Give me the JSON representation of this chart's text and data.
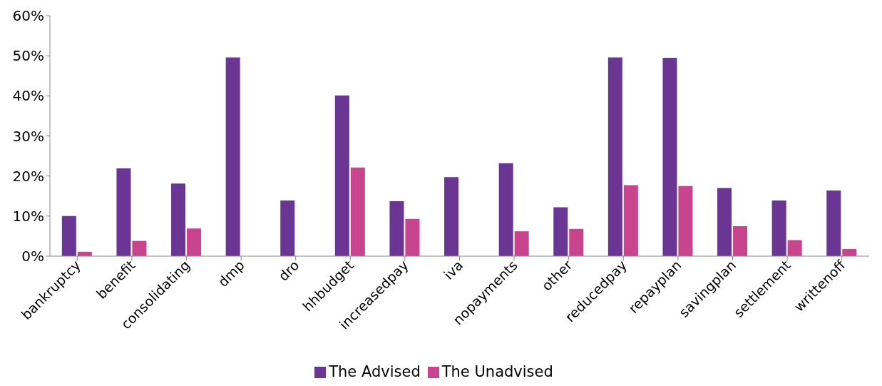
{
  "chart_data": {
    "type": "bar",
    "categories": [
      "bankruptcy",
      "benefit",
      "consolidating",
      "dmp",
      "dro",
      "hhbudget",
      "increasedpay",
      "iva",
      "nopayments",
      "other",
      "reducedpay",
      "repayplan",
      "savingplan",
      "settlement",
      "writtenoff"
    ],
    "series": [
      {
        "name": "The Advised",
        "color": "#6a3593",
        "values": [
          10,
          21.9,
          18.1,
          49.6,
          13.9,
          40.1,
          13.7,
          19.7,
          23.2,
          12.2,
          49.6,
          49.5,
          17.0,
          13.9,
          16.4
        ]
      },
      {
        "name": "The Unadvised",
        "color": "#c8448c",
        "values": [
          1.1,
          3.8,
          6.9,
          0,
          0,
          22.1,
          9.3,
          0,
          6.2,
          6.8,
          17.7,
          17.5,
          7.5,
          4.0,
          1.8
        ]
      }
    ],
    "ylim": [
      0,
      60
    ],
    "yticks": [
      {
        "value": 0,
        "label": "0%"
      },
      {
        "value": 10,
        "label": "10%"
      },
      {
        "value": 20,
        "label": "20%"
      },
      {
        "value": 30,
        "label": "30%"
      },
      {
        "value": 40,
        "label": "40%"
      },
      {
        "value": 50,
        "label": "50%"
      },
      {
        "value": 60,
        "label": "60%"
      }
    ],
    "grid": false,
    "legend": "bottom"
  }
}
